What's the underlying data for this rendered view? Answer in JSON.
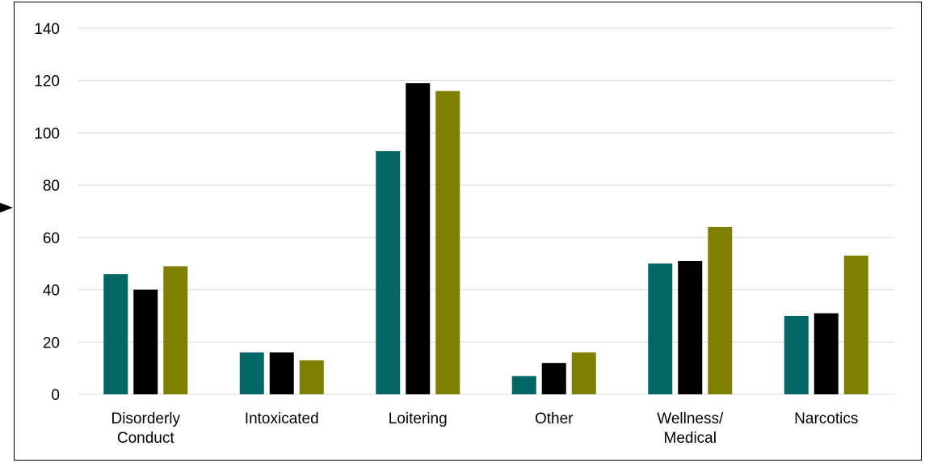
{
  "chart_data": {
    "type": "bar",
    "categories": [
      [
        "Disorderly",
        "Conduct"
      ],
      [
        "Intoxicated"
      ],
      [
        "Loitering"
      ],
      [
        "Other"
      ],
      [
        "Wellness/",
        "Medical"
      ],
      [
        "Narcotics"
      ]
    ],
    "series": [
      {
        "color": "#006666",
        "values": [
          46,
          16,
          93,
          7,
          50,
          30
        ]
      },
      {
        "color": "#000000",
        "values": [
          40,
          16,
          119,
          12,
          51,
          31
        ]
      },
      {
        "color": "#808000",
        "values": [
          49,
          13,
          116,
          16,
          64,
          53
        ]
      }
    ],
    "ylim": [
      0,
      140
    ],
    "yticks": [
      0,
      20,
      40,
      60,
      80,
      100,
      120,
      140
    ],
    "grid": true,
    "gridColor": "#d9d9d9"
  }
}
